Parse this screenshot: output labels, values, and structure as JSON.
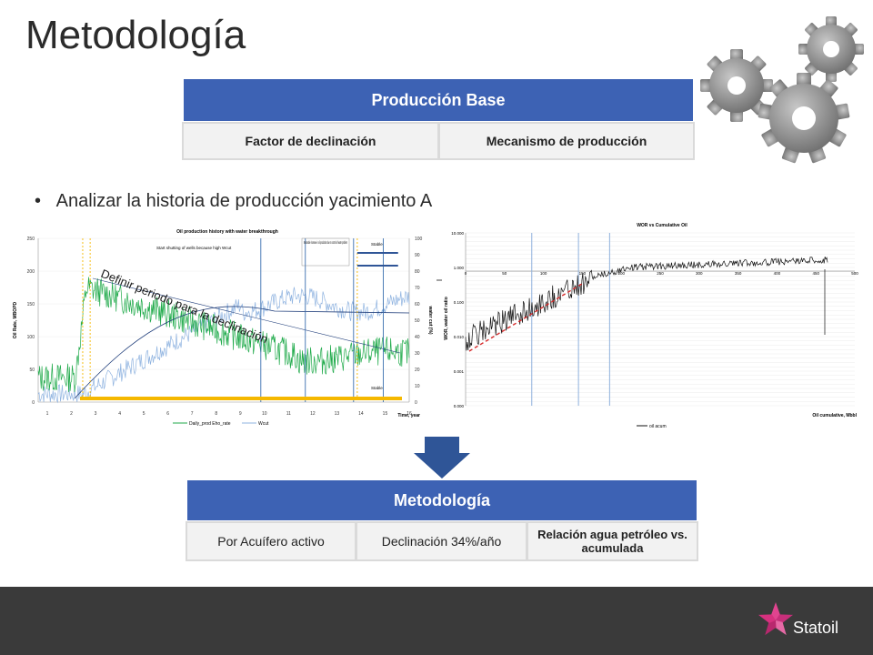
{
  "slide": {
    "title": "Metodología",
    "bullet": "Analizar la historia de producción yacimiento A"
  },
  "top_table": {
    "header": "Producción Base",
    "cells": [
      "Factor de declinación",
      "Mecanismo de producción"
    ]
  },
  "bottom_table": {
    "header": "Metodología",
    "cells": [
      "Por Acuífero activo",
      "Declinación 34%/año",
      "Relación agua petróleo vs. acumulada"
    ]
  },
  "chart_left": {
    "title": "Oil production history with water breakthrough",
    "ylabel_left": "Oil Rate, MBOPD",
    "ylabel_right": "water cut (%)",
    "xlabel": "Time, year",
    "y_ticks": [
      "250",
      "200",
      "150",
      "100",
      "50",
      "0"
    ],
    "y2_ticks": [
      "100",
      "90",
      "80",
      "70",
      "60",
      "50",
      "40",
      "30",
      "20",
      "10",
      "0"
    ],
    "x_ticks": [
      "1",
      "2",
      "3",
      "4",
      "5",
      "6",
      "7",
      "8",
      "9",
      "10",
      "11",
      "12",
      "13",
      "14",
      "15",
      "16"
    ],
    "annotations": {
      "shutting": "Start shutting of wells because high Wcut",
      "noticeable": "Noticeable increase in oil production due to control of water problem",
      "stable_top": "Stable",
      "stable_bottom": "Stable"
    },
    "overlay": "Definir periodo para la declinación",
    "legend": [
      "Daily_prod Eho_rate",
      "Wcut"
    ]
  },
  "chart_right": {
    "title": "WOR vs Cumulative Oil",
    "ylabel": "WOR, water oil ratio",
    "xlabel": "Oil cumulative, Mbbl",
    "y_ticks": [
      "10.000",
      "1.000",
      "0.100",
      "0.010",
      "0.001",
      "0.000"
    ],
    "x_ticks": [
      "0",
      "50",
      "100",
      "150",
      "200",
      "250",
      "300",
      "350",
      "400",
      "450",
      "500"
    ],
    "legend": "oil acum"
  },
  "brand": {
    "name": "Statoil"
  },
  "colors": {
    "header_blue": "#3d62b4",
    "arrow_blue": "#2f5597",
    "footer": "#3a3a3a",
    "oil_green": "#1faa4a",
    "wcut_blue": "#8fb3e0",
    "highlight_orange": "#f5b800",
    "trend_red": "#d62b2b",
    "logo_pink": "#d6317f"
  }
}
